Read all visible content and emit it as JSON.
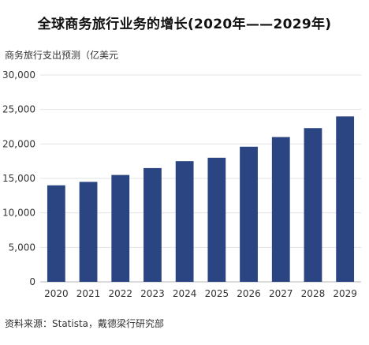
{
  "chart_data": {
    "type": "bar",
    "title": "全球商务旅行业务的增长(2020年——2029年)",
    "ylabel": "商务旅行支出预测（亿美元",
    "xlabel": "",
    "categories": [
      "2020",
      "2021",
      "2022",
      "2023",
      "2024",
      "2025",
      "2026",
      "2027",
      "2028",
      "2029"
    ],
    "values": [
      14000,
      14500,
      15500,
      16500,
      17500,
      18000,
      19600,
      21000,
      22300,
      24000
    ],
    "ylim": [
      0,
      30000
    ],
    "yticks": [
      "0",
      "5,000",
      "10,000",
      "15,000",
      "20,000",
      "25,000",
      "30,000"
    ],
    "grid": true,
    "bar_color": "#2b4582"
  },
  "source": "资料来源：Statista，戴德梁行研究部"
}
